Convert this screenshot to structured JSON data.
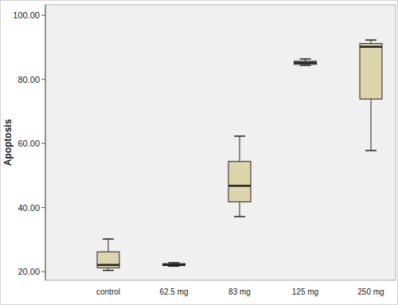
{
  "chart_data": {
    "type": "box",
    "y_label": "Apoptosis",
    "categories": [
      "control",
      "62.5 mg",
      "83 mg",
      "125 mg",
      "250 mg"
    ],
    "min": [
      20.4,
      21.7,
      37.2,
      84.4,
      57.8
    ],
    "q1": [
      21.2,
      21.9,
      41.8,
      84.7,
      73.9
    ],
    "median": [
      22.1,
      22.2,
      46.8,
      85.2,
      90.2
    ],
    "q3": [
      26.2,
      22.5,
      54.4,
      85.7,
      91.2
    ],
    "max": [
      30.2,
      22.8,
      62.3,
      86.4,
      92.3
    ],
    "color": "#ddd6ac",
    "ylim": [
      17.3,
      103.3
    ],
    "yticks": [
      {
        "value": 20,
        "label": "20.00"
      },
      {
        "value": 40,
        "label": "40.00"
      },
      {
        "value": 60,
        "label": "60.00"
      },
      {
        "value": 80,
        "label": "80.00"
      },
      {
        "value": 100,
        "label": "100.00"
      }
    ],
    "grid": false
  }
}
